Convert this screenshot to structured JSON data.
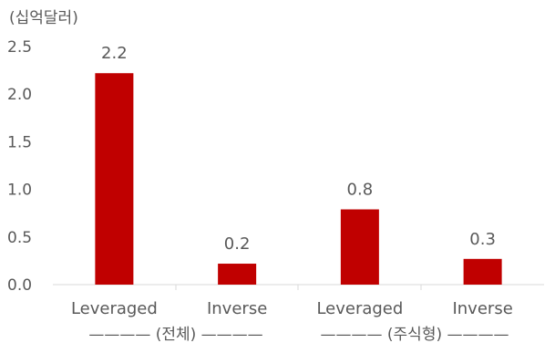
{
  "chart_data": {
    "type": "bar",
    "unit_label": "(십억달러)",
    "categories": [
      "Leveraged",
      "Inverse",
      "Leveraged",
      "Inverse"
    ],
    "values": [
      2.2,
      0.2,
      0.8,
      0.3
    ],
    "data_labels": [
      "2.2",
      "0.2",
      "0.8",
      "0.3"
    ],
    "actual_values": [
      2.22,
      0.22,
      0.79,
      0.27
    ],
    "groups": [
      {
        "label": "———— (전체) ————",
        "categories": [
          0,
          1
        ]
      },
      {
        "label": "———— (주식형) ————",
        "categories": [
          2,
          3
        ]
      }
    ],
    "y_ticks": [
      "0.0",
      "0.5",
      "1.0",
      "1.5",
      "2.0",
      "2.5"
    ],
    "ylim": [
      0,
      2.5
    ],
    "grid": false,
    "bar_color": "#C00000"
  }
}
